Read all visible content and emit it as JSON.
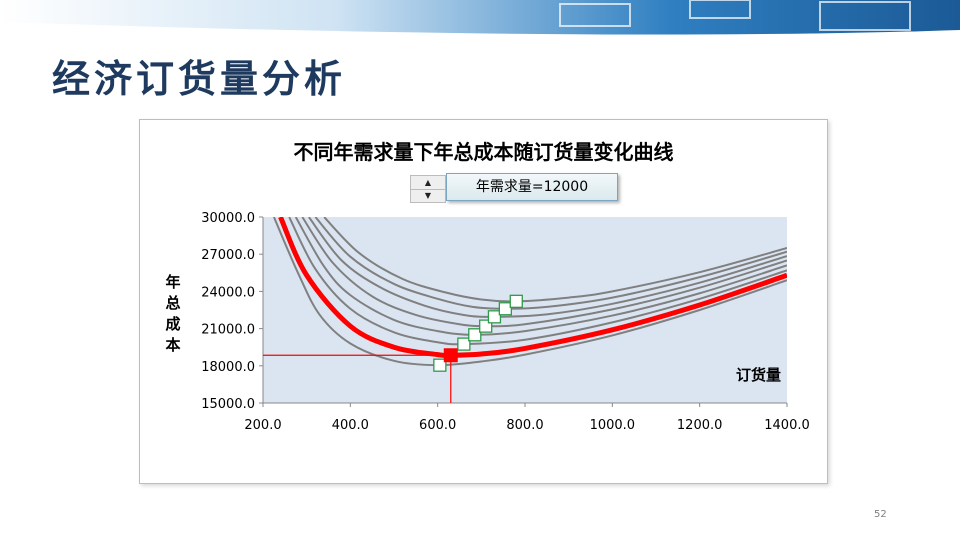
{
  "slide": {
    "title": "经济订货量分析",
    "page_number": "52"
  },
  "controls": {
    "demand_label": "年需求量=12000"
  },
  "chart_data": {
    "type": "line",
    "title": "不同年需求量下年总成本随订货量变化曲线",
    "xlabel": "订货量",
    "ylabel": "年总成本",
    "xlim": [
      200,
      1400
    ],
    "ylim": [
      15000,
      30000
    ],
    "xticks": [
      200,
      400,
      600,
      800,
      1000,
      1200,
      1400
    ],
    "xtick_labels": [
      "200.0",
      "400.0",
      "600.0",
      "800.0",
      "1000.0",
      "1200.0",
      "1400.0"
    ],
    "yticks": [
      15000,
      18000,
      21000,
      24000,
      27000,
      30000
    ],
    "ytick_labels": [
      "15000.0",
      "18000.0",
      "21000.0",
      "24000.0",
      "27000.0",
      "30000.0"
    ],
    "grid": false,
    "highlight_color": "#ff0000",
    "curve_color": "#808080",
    "plot_bg": "#dbe5f1",
    "series": [
      {
        "values": [
          {
            "x": 225,
            "y": 30000
          },
          {
            "x": 280,
            "y": 25500
          },
          {
            "x": 330,
            "y": 22100
          },
          {
            "x": 400,
            "y": 19800
          },
          {
            "x": 500,
            "y": 18400
          },
          {
            "x": 600,
            "y": 18050
          },
          {
            "x": 700,
            "y": 18350
          },
          {
            "x": 800,
            "y": 18900
          },
          {
            "x": 1000,
            "y": 20450
          },
          {
            "x": 1200,
            "y": 22500
          },
          {
            "x": 1400,
            "y": 24900
          }
        ],
        "highlighted": false
      },
      {
        "values": [
          {
            "x": 240,
            "y": 30000
          },
          {
            "x": 300,
            "y": 25300
          },
          {
            "x": 400,
            "y": 21200
          },
          {
            "x": 500,
            "y": 19500
          },
          {
            "x": 600,
            "y": 18900
          },
          {
            "x": 630,
            "y": 18850
          },
          {
            "x": 700,
            "y": 18950
          },
          {
            "x": 800,
            "y": 19400
          },
          {
            "x": 1000,
            "y": 20900
          },
          {
            "x": 1200,
            "y": 22900
          },
          {
            "x": 1400,
            "y": 25300
          }
        ],
        "highlighted": true
      },
      {
        "values": [
          {
            "x": 260,
            "y": 30000
          },
          {
            "x": 320,
            "y": 25800
          },
          {
            "x": 400,
            "y": 22600
          },
          {
            "x": 500,
            "y": 20700
          },
          {
            "x": 600,
            "y": 19900
          },
          {
            "x": 660,
            "y": 19750
          },
          {
            "x": 800,
            "y": 20100
          },
          {
            "x": 1000,
            "y": 21500
          },
          {
            "x": 1200,
            "y": 23400
          },
          {
            "x": 1400,
            "y": 25700
          }
        ]
      },
      {
        "values": [
          {
            "x": 275,
            "y": 30000
          },
          {
            "x": 340,
            "y": 26000
          },
          {
            "x": 400,
            "y": 23700
          },
          {
            "x": 500,
            "y": 21700
          },
          {
            "x": 600,
            "y": 20800
          },
          {
            "x": 685,
            "y": 20500
          },
          {
            "x": 800,
            "y": 20800
          },
          {
            "x": 1000,
            "y": 22050
          },
          {
            "x": 1200,
            "y": 23850
          },
          {
            "x": 1400,
            "y": 26100
          }
        ]
      },
      {
        "values": [
          {
            "x": 290,
            "y": 30000
          },
          {
            "x": 360,
            "y": 26300
          },
          {
            "x": 450,
            "y": 23600
          },
          {
            "x": 550,
            "y": 22100
          },
          {
            "x": 650,
            "y": 21350
          },
          {
            "x": 710,
            "y": 21200
          },
          {
            "x": 800,
            "y": 21350
          },
          {
            "x": 1000,
            "y": 22550
          },
          {
            "x": 1200,
            "y": 24300
          },
          {
            "x": 1400,
            "y": 26500
          }
        ]
      },
      {
        "values": [
          {
            "x": 305,
            "y": 30000
          },
          {
            "x": 380,
            "y": 26500
          },
          {
            "x": 470,
            "y": 24300
          },
          {
            "x": 570,
            "y": 22850
          },
          {
            "x": 660,
            "y": 22100
          },
          {
            "x": 730,
            "y": 21950
          },
          {
            "x": 850,
            "y": 22150
          },
          {
            "x": 1000,
            "y": 23000
          },
          {
            "x": 1200,
            "y": 24700
          },
          {
            "x": 1400,
            "y": 26850
          }
        ]
      },
      {
        "values": [
          {
            "x": 320,
            "y": 30000
          },
          {
            "x": 400,
            "y": 26800
          },
          {
            "x": 500,
            "y": 24600
          },
          {
            "x": 600,
            "y": 23400
          },
          {
            "x": 680,
            "y": 22750
          },
          {
            "x": 755,
            "y": 22600
          },
          {
            "x": 850,
            "y": 22750
          },
          {
            "x": 1000,
            "y": 23500
          },
          {
            "x": 1200,
            "y": 25150
          },
          {
            "x": 1400,
            "y": 27200
          }
        ]
      },
      {
        "values": [
          {
            "x": 340,
            "y": 30000
          },
          {
            "x": 420,
            "y": 27100
          },
          {
            "x": 520,
            "y": 25000
          },
          {
            "x": 620,
            "y": 23900
          },
          {
            "x": 700,
            "y": 23350
          },
          {
            "x": 780,
            "y": 23200
          },
          {
            "x": 900,
            "y": 23500
          },
          {
            "x": 1000,
            "y": 24000
          },
          {
            "x": 1200,
            "y": 25550
          },
          {
            "x": 1400,
            "y": 27500
          }
        ]
      }
    ],
    "optimum_markers": [
      {
        "x": 605,
        "y": 18050
      },
      {
        "x": 660,
        "y": 19750
      },
      {
        "x": 685,
        "y": 20500
      },
      {
        "x": 710,
        "y": 21200
      },
      {
        "x": 730,
        "y": 21950
      },
      {
        "x": 755,
        "y": 22600
      },
      {
        "x": 780,
        "y": 23200
      }
    ],
    "selected_optimum": {
      "x": 630,
      "y": 18850
    }
  }
}
